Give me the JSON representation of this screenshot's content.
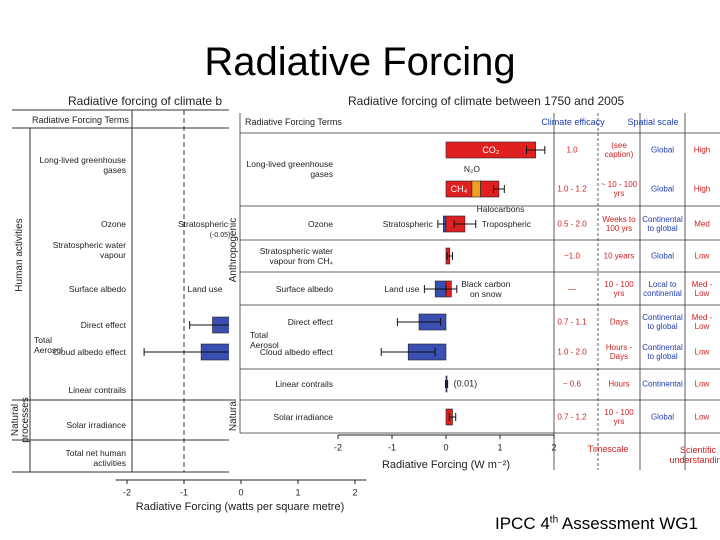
{
  "title": "Radiative Forcing",
  "footer": {
    "main": "IPCC 4",
    "sup": "th",
    "rest": " Assessment WG1"
  },
  "chart_data": [
    {
      "type": "bar",
      "orientation": "horizontal",
      "stacked": true,
      "title": "Radiative forcing of climate b",
      "terms_header": "Radiative Forcing Terms",
      "categories": [
        "Long-lived greenhouse gases",
        "Ozone",
        "Stratospheric water vapour",
        "Surface albedo",
        "Direct effect",
        "Cloud albedo effect",
        "Linear contrails",
        "Solar irradiance",
        "Total net human activities"
      ],
      "group_labels": [
        "Total Aerosol"
      ],
      "side_labels": [
        "Human activities",
        "Natural processes"
      ],
      "annotations": [
        "Stratospheric",
        "(-0.05)",
        "Land use"
      ],
      "series": [
        {
          "color": "#3b4fb0",
          "values": [
            null,
            null,
            null,
            null,
            -0.5,
            -0.7,
            0.01,
            null,
            null
          ],
          "errors": [
            null,
            null,
            null,
            null,
            0.4,
            1.0,
            0.02,
            null,
            null
          ]
        }
      ],
      "xlim": [
        -2.2,
        2.2
      ],
      "xticks": [
        -2,
        -1,
        0,
        1,
        2
      ],
      "xlabel": "Radiative Forcing  (watts per square metre)"
    },
    {
      "type": "bar",
      "orientation": "horizontal",
      "stacked": true,
      "title": "Radiative forcing of climate between 1750 and 2005",
      "terms_header": "Radiative Forcing Terms",
      "categories": [
        "Long-lived greenhouse gases",
        null,
        "Ozone",
        "Stratospheric water vapour from CH₄",
        "Surface albedo",
        "Direct effect",
        "Cloud albedo effect",
        "Linear contrails",
        "Solar irradiance"
      ],
      "group_labels": [
        "Total Aerosol"
      ],
      "side_labels": [
        "Anthropogenic",
        "Natural"
      ],
      "series": [
        {
          "name": "CO₂",
          "color": "#e02020",
          "values": [
            1.66,
            null,
            null,
            null,
            null,
            null,
            null,
            null,
            null
          ],
          "errors": [
            0.17,
            null,
            null,
            null,
            null,
            null,
            null,
            null,
            null
          ]
        },
        {
          "name": "CH₄",
          "color": "#e02020",
          "values": [
            null,
            0.48,
            null,
            null,
            null,
            null,
            null,
            null,
            null
          ]
        },
        {
          "name": "N₂O",
          "color": "#f0a020",
          "values": [
            null,
            0.16,
            null,
            null,
            null,
            null,
            null,
            null,
            null
          ]
        },
        {
          "name": "Halocarbons",
          "color": "#e02020",
          "values": [
            null,
            0.34,
            null,
            null,
            null,
            null,
            null,
            null,
            null
          ],
          "errors": [
            null,
            0.1,
            null,
            null,
            null,
            null,
            null,
            null,
            null
          ]
        },
        {
          "name": "Stratospheric",
          "color": "#3b4fb0",
          "values": [
            null,
            null,
            -0.05,
            null,
            null,
            null,
            null,
            null,
            null
          ],
          "errors": [
            null,
            null,
            0.1,
            null,
            null,
            null,
            null,
            null,
            null
          ]
        },
        {
          "name": "Tropospheric",
          "color": "#e02020",
          "values": [
            null,
            null,
            0.35,
            null,
            null,
            null,
            null,
            null,
            null
          ],
          "errors": [
            null,
            null,
            0.2,
            null,
            null,
            null,
            null,
            null,
            null
          ]
        },
        {
          "color": "#e02020",
          "values": [
            null,
            null,
            null,
            0.07,
            null,
            null,
            null,
            null,
            null
          ],
          "errors": [
            null,
            null,
            null,
            0.05,
            null,
            null,
            null,
            null,
            null
          ]
        },
        {
          "name": "Land use",
          "color": "#3b4fb0",
          "values": [
            null,
            null,
            null,
            null,
            -0.2,
            null,
            null,
            null,
            null
          ],
          "errors": [
            null,
            null,
            null,
            null,
            0.2,
            null,
            null,
            null,
            null
          ]
        },
        {
          "name": "Black carbon on snow",
          "color": "#e02020",
          "values": [
            null,
            null,
            null,
            null,
            0.1,
            null,
            null,
            null,
            null
          ],
          "errors": [
            null,
            null,
            null,
            null,
            0.1,
            null,
            null,
            null,
            null
          ]
        },
        {
          "color": "#3b4fb0",
          "values": [
            null,
            null,
            null,
            null,
            null,
            -0.5,
            -0.7,
            0.01,
            null
          ],
          "errors": [
            null,
            null,
            null,
            null,
            null,
            0.4,
            0.5,
            0.02,
            null
          ],
          "value_labels": [
            null,
            null,
            null,
            null,
            null,
            null,
            null,
            "(0.01)",
            null
          ]
        },
        {
          "color": "#e02020",
          "values": [
            null,
            null,
            null,
            null,
            null,
            null,
            null,
            null,
            0.12
          ],
          "errors": [
            null,
            null,
            null,
            null,
            null,
            null,
            null,
            null,
            0.06
          ]
        }
      ],
      "xlim": [
        -2,
        2
      ],
      "xticks": [
        -2,
        -1,
        0,
        1,
        2
      ],
      "xlabel": "Radiative Forcing  (W m⁻²)",
      "table": {
        "header": [
          "Climate efficacy",
          "Spatial scale"
        ],
        "footer": [
          "Timescale",
          "Scientific understanding"
        ],
        "rows": [
          [
            "1.0",
            "(see caption)",
            "Global",
            "High"
          ],
          [
            "1.0 - 1.2",
            "~ 10 - 100 yrs",
            "Global",
            "High"
          ],
          [
            "0.5 - 2.0",
            "Weeks to 100 yrs",
            "Continental to global",
            "Med"
          ],
          [
            "~1.0",
            "10 years",
            "Global",
            "Low"
          ],
          [
            "—",
            "10 - 100 yrs",
            "Local to continental",
            "Med - Low"
          ],
          [
            "0.7 - 1.1",
            "Days",
            "Continental to global",
            "Med - Low"
          ],
          [
            "1.0 - 2.0",
            "Hours - Days",
            "Continental to global",
            "Low"
          ],
          [
            "~ 0.6",
            "Hours",
            "Continental",
            "Low"
          ],
          [
            "0.7 - 1.2",
            "10 - 100 yrs",
            "Global",
            "Low"
          ]
        ]
      }
    }
  ]
}
